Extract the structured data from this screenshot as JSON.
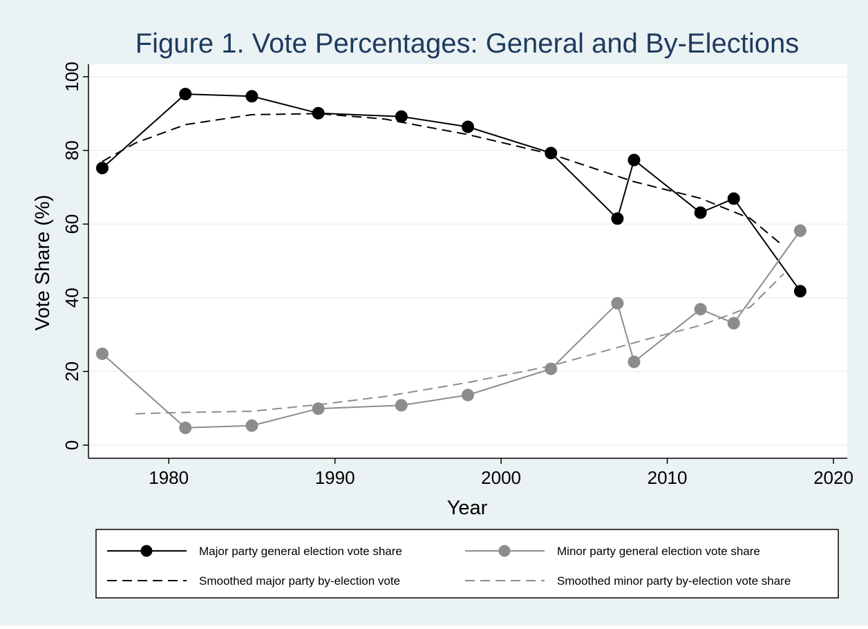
{
  "chart_data": {
    "type": "line",
    "title": "Figure 1. Vote Percentages: General and By-Elections",
    "xlabel": "Year",
    "ylabel": "Vote Share (%)",
    "xlim": [
      1976,
      2020
    ],
    "ylim": [
      0,
      100
    ],
    "xticks": [
      1980,
      1990,
      2000,
      2010,
      2020
    ],
    "yticks": [
      0,
      20,
      40,
      60,
      80,
      100
    ],
    "grid": "horizontal",
    "legend_position": "bottom",
    "colors": {
      "page_bg": "#eaf2f3",
      "plot_bg": "#ffffff",
      "major": "#000000",
      "minor": "#8c8c8c",
      "title": "#1e3a5f"
    },
    "series": [
      {
        "name": "Major party general election vote share",
        "style": "solid-markers",
        "x": [
          1976,
          1981,
          1985,
          1989,
          1994,
          1998,
          2003,
          2007,
          2008,
          2012,
          2014,
          2018
        ],
        "y": [
          75.2,
          95.3,
          94.7,
          90.1,
          89.2,
          86.4,
          79.3,
          61.5,
          77.4,
          63.1,
          66.9,
          41.8
        ]
      },
      {
        "name": "Minor party general election vote share",
        "style": "solid-markers",
        "x": [
          1976,
          1981,
          1985,
          1989,
          1994,
          1998,
          2003,
          2007,
          2008,
          2012,
          2014,
          2018
        ],
        "y": [
          24.8,
          4.7,
          5.3,
          9.9,
          10.8,
          13.6,
          20.7,
          38.5,
          22.6,
          36.9,
          33.1,
          58.2
        ]
      },
      {
        "name": "Smoothed major party by-election vote",
        "style": "dashed",
        "x": [
          1976,
          1978,
          1981,
          1985,
          1989,
          1993,
          1998,
          2003,
          2008,
          2012,
          2015,
          2017
        ],
        "y": [
          77,
          82,
          87,
          89.7,
          90,
          88.5,
          84.3,
          79,
          71.5,
          67,
          61.5,
          54
        ]
      },
      {
        "name": "Smoothed minor party by-election vote share",
        "style": "dashed",
        "x": [
          1978,
          1981,
          1985,
          1989,
          1993,
          1998,
          2003,
          2009,
          2012,
          2015,
          2017
        ],
        "y": [
          8.5,
          8.9,
          9.2,
          11,
          13.2,
          17,
          21.5,
          29,
          32.5,
          37.5,
          46.5
        ]
      }
    ]
  }
}
